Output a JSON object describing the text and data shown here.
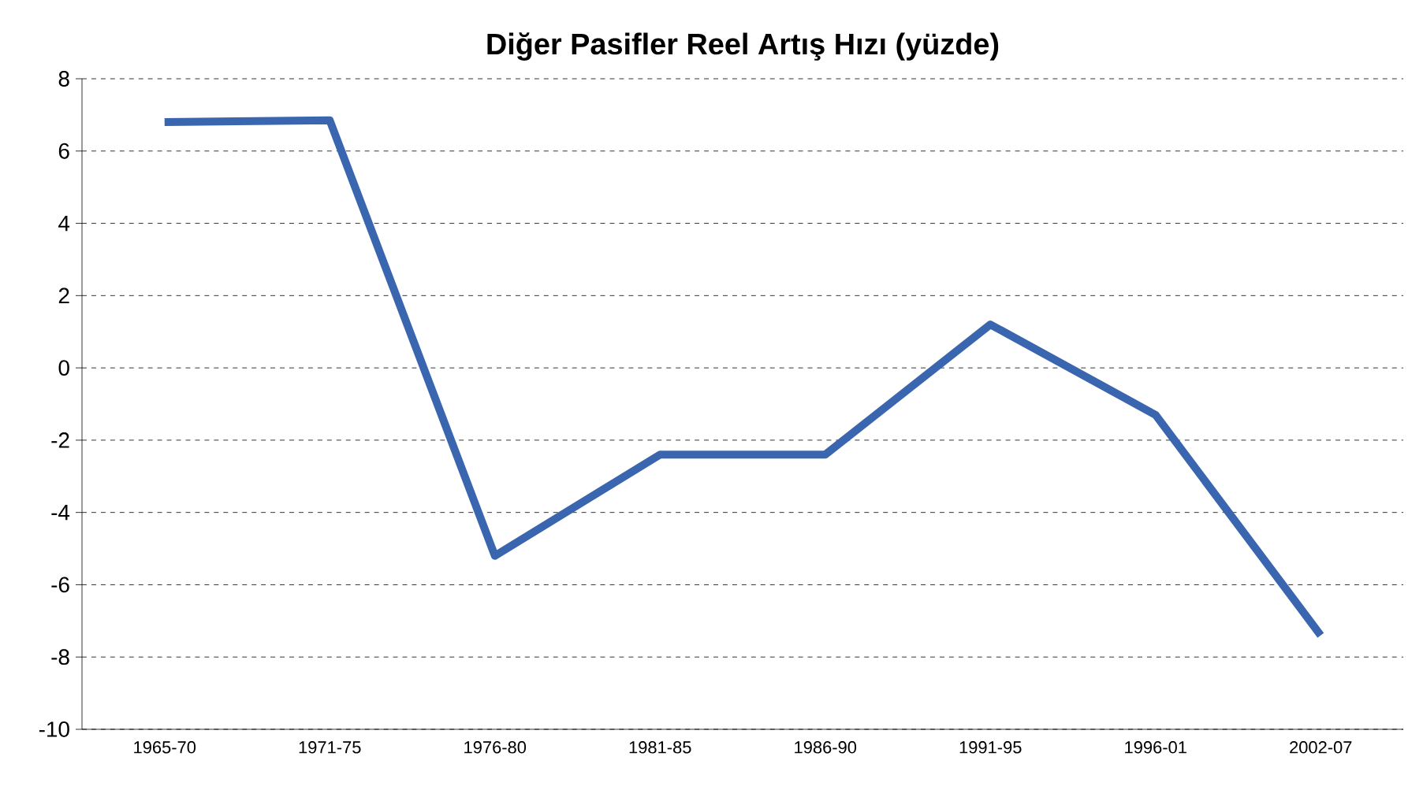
{
  "chart_data": {
    "type": "line",
    "title": "Diğer Pasifler Reel Artış Hızı (yüzde)",
    "categories": [
      "1965-70",
      "1971-75",
      "1976-80",
      "1981-85",
      "1986-90",
      "1991-95",
      "1996-01",
      "2002-07"
    ],
    "values": [
      6.8,
      6.85,
      -5.2,
      -2.4,
      -2.4,
      1.2,
      -1.3,
      -7.4
    ],
    "color": "#3a66b0",
    "ylim": [
      -10,
      8
    ],
    "yticks": [
      -10,
      -8,
      -6,
      -4,
      -2,
      0,
      2,
      4,
      6,
      8
    ],
    "grid": "y",
    "marker": "none",
    "line_style": "solid"
  }
}
